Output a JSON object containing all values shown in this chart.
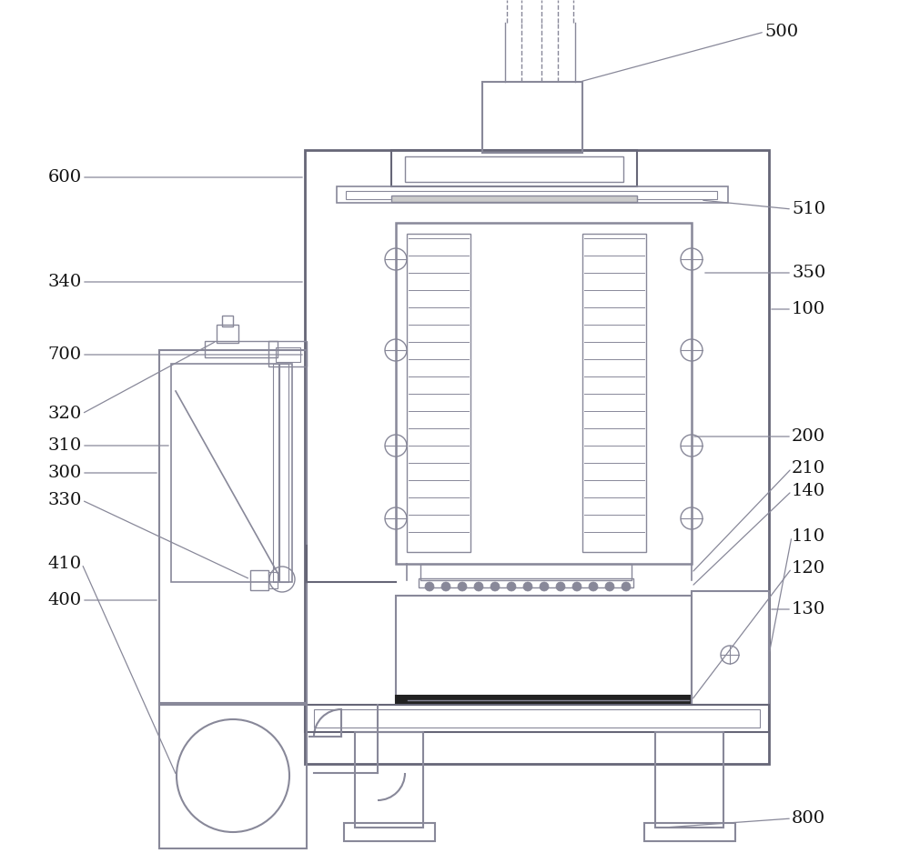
{
  "bg_color": "#ffffff",
  "lc": "#888899",
  "lc2": "#666677",
  "green": "#5a9a5a",
  "black": "#111111",
  "label_color": "#111111",
  "fig_width": 10.0,
  "fig_height": 9.49
}
